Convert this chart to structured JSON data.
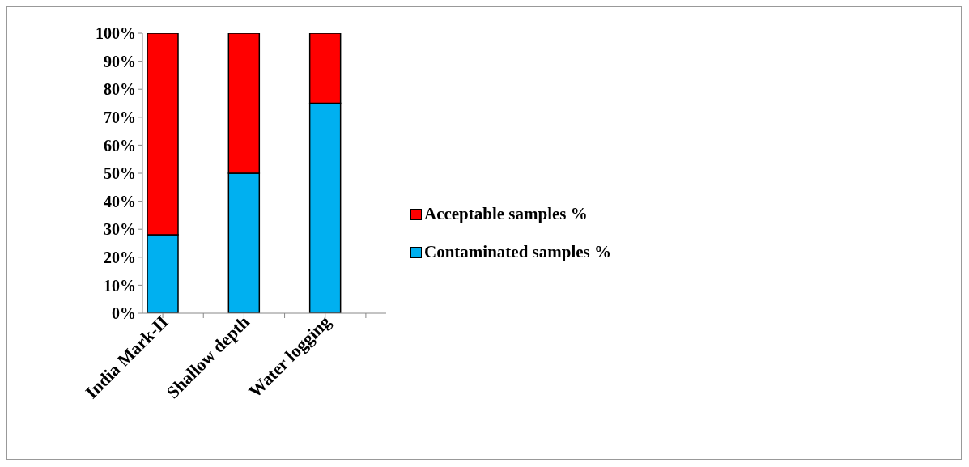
{
  "chart_data": {
    "type": "bar",
    "stacked": true,
    "categories": [
      "India Mark-II",
      null,
      "Shallow depth",
      null,
      "Water logging",
      null
    ],
    "series": [
      {
        "name": "Contaminated samples %",
        "color": "#00b0f0",
        "values": [
          28,
          null,
          50,
          null,
          75,
          null
        ]
      },
      {
        "name": "Acceptable samples %",
        "color": "#ff0000",
        "values": [
          72,
          null,
          50,
          null,
          25,
          null
        ]
      }
    ],
    "ylim": [
      0,
      100
    ],
    "yticks": [
      {
        "value": 0,
        "label": "0%"
      },
      {
        "value": 10,
        "label": "10%"
      },
      {
        "value": 20,
        "label": "20%"
      },
      {
        "value": 30,
        "label": "30%"
      },
      {
        "value": 40,
        "label": "40%"
      },
      {
        "value": 50,
        "label": "50%"
      },
      {
        "value": 60,
        "label": "60%"
      },
      {
        "value": 70,
        "label": "70%"
      },
      {
        "value": 80,
        "label": "80%"
      },
      {
        "value": 90,
        "label": "90%"
      },
      {
        "value": 100,
        "label": "100%"
      }
    ],
    "grid": false,
    "legend": "right"
  }
}
